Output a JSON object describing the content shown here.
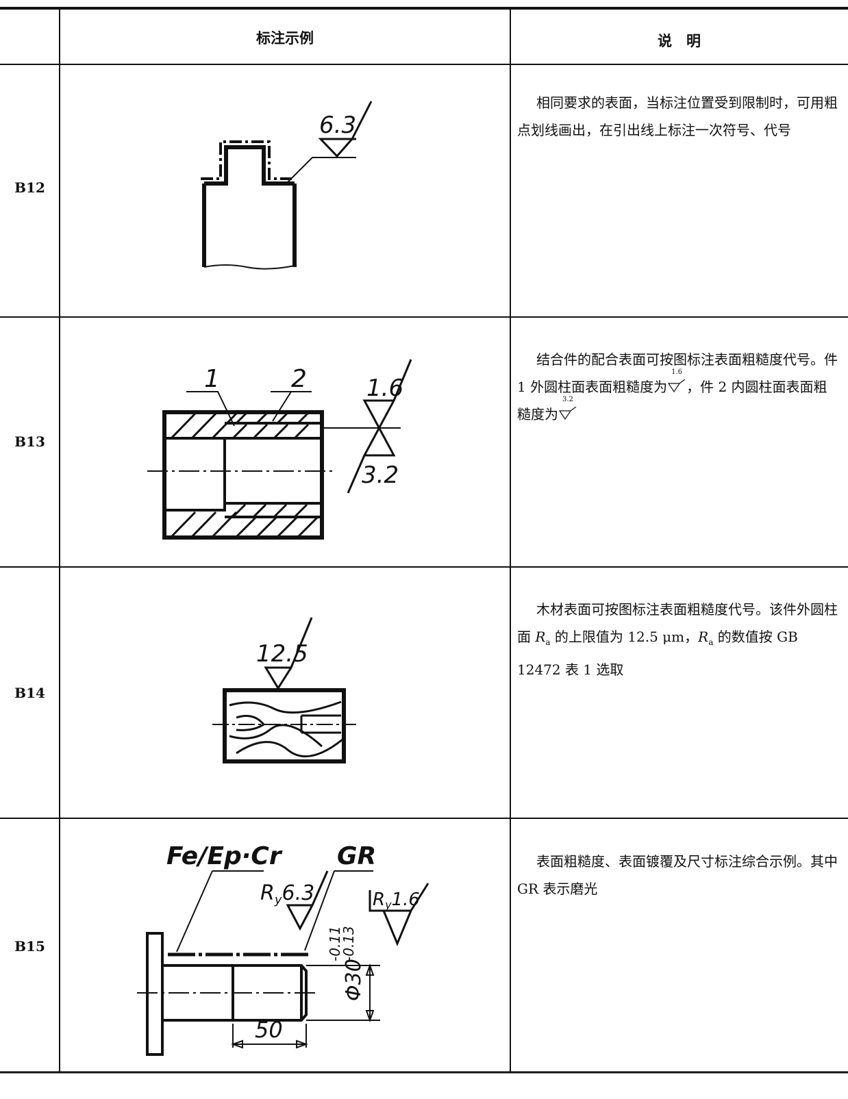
{
  "table": {
    "header": {
      "example": "标注示例",
      "description": "说　明"
    },
    "rows": [
      {
        "id": "B12",
        "drawing": {
          "roughness": "6.3"
        },
        "description": [
          "相同要求的表面，当标注位置受到限制时，可用粗点划线画出，在引出线上标注一次符号、代号"
        ]
      },
      {
        "id": "B13",
        "drawing": {
          "part_1": "1",
          "part_2": "2",
          "roughness_outer": "1.6",
          "roughness_inner": "3.2"
        },
        "description": [
          "结合件的配合表面可按图标注表面粗糙度代号。件 1 外圆柱面表面粗糙度为",
          "，件 2 内圆柱面表面粗糙度为"
        ],
        "inline_symbols": [
          "1.6",
          "3.2"
        ]
      },
      {
        "id": "B14",
        "drawing": {
          "roughness": "12.5"
        },
        "description": [
          "木材表面可按图标注表面粗糙度代号。该件外圆柱面 ",
          "R",
          "a",
          " 的上限值为 12.5 μm，",
          "R",
          "a",
          " 的数值按 GB 12472 表 1 选取"
        ]
      },
      {
        "id": "B15",
        "drawing": {
          "coating": "Fe/Ep·Cr",
          "finish": "GR",
          "roughness_left": {
            "param": "R",
            "sub": "y",
            "value": "6.3"
          },
          "roughness_right": {
            "param": "R",
            "sub": "y",
            "value": "1.6"
          },
          "diameter": "Φ30",
          "upper_deviation": "-0.11",
          "lower_deviation": "-0.13",
          "length": "50"
        },
        "description": [
          "表面粗糙度、表面镀覆及尺寸标注综合示例。其中 GR 表示磨光"
        ]
      }
    ]
  }
}
